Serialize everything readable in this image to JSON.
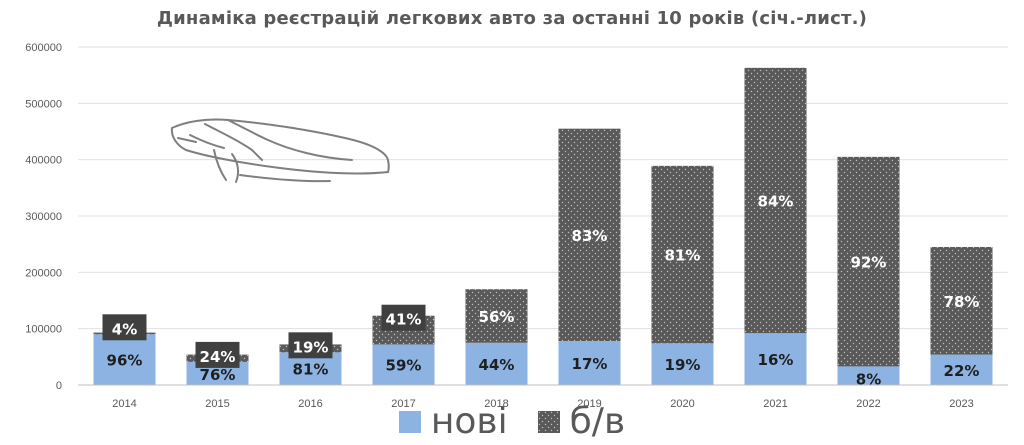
{
  "chart_data": {
    "type": "bar",
    "title": "Динаміка реєстрацій легкових авто за останні 10 років (січ.-лист.)",
    "categories": [
      "2014",
      "2015",
      "2016",
      "2017",
      "2018",
      "2019",
      "2020",
      "2021",
      "2022",
      "2023"
    ],
    "series": [
      {
        "name": "нові",
        "color": "#8db3e2",
        "values": [
          90000,
          41000,
          58000,
          72000,
          75000,
          78000,
          74000,
          92000,
          33000,
          54000
        ],
        "labels": [
          "96%",
          "76%",
          "81%",
          "59%",
          "44%",
          "17%",
          "19%",
          "16%",
          "8%",
          "22%"
        ]
      },
      {
        "name": "б/в",
        "color": "#595959",
        "values": [
          3000,
          13000,
          14000,
          51000,
          95000,
          377000,
          315000,
          471000,
          372000,
          191000
        ],
        "labels": [
          "4%",
          "24%",
          "19%",
          "41%",
          "56%",
          "83%",
          "81%",
          "84%",
          "92%",
          "78%"
        ]
      }
    ],
    "ylim": [
      0,
      600000
    ],
    "yticks": [
      "0",
      "100000",
      "200000",
      "300000",
      "400000",
      "500000",
      "600000"
    ],
    "grid": true,
    "stacked": true,
    "legend": "bottom"
  },
  "legend": {
    "new_label": "нові",
    "used_label": "б/в"
  },
  "decoration": {
    "icon": "car-silhouette-icon"
  }
}
